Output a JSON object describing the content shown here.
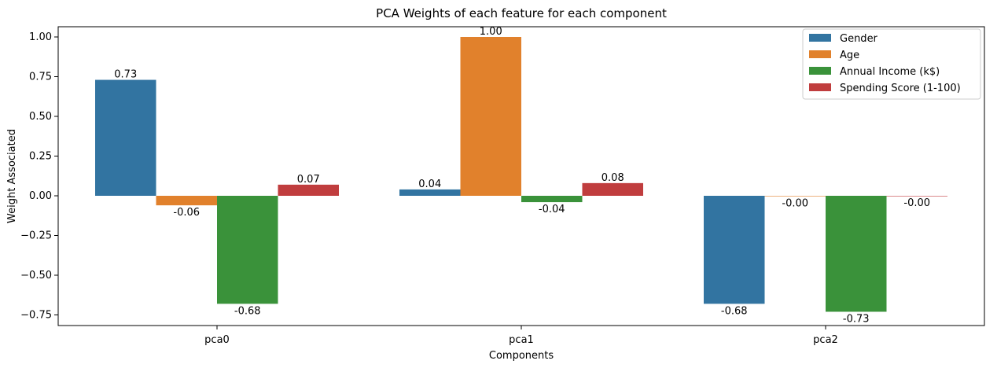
{
  "chart_data": {
    "type": "bar",
    "title": "PCA Weights of each feature for each component",
    "xlabel": "Components",
    "ylabel": "Weight Associated",
    "categories": [
      "pca0",
      "pca1",
      "pca2"
    ],
    "ylim": [
      -0.82,
      1.07
    ],
    "yticks": [
      -0.75,
      -0.5,
      -0.25,
      0.0,
      0.25,
      0.5,
      0.75,
      1.0
    ],
    "ytick_labels": [
      "−0.75",
      "−0.50",
      "−0.25",
      "0.00",
      "0.25",
      "0.50",
      "0.75",
      "1.00"
    ],
    "legend_position": "top-right",
    "grid": false,
    "series": [
      {
        "name": "Gender",
        "color": "#3274a1",
        "values": [
          0.73,
          0.04,
          -0.68
        ],
        "labels": [
          "0.73",
          "0.04",
          "-0.68"
        ]
      },
      {
        "name": "Age",
        "color": "#e1812c",
        "values": [
          -0.06,
          1.0,
          -0.003
        ],
        "labels": [
          "-0.06",
          "1.00",
          "-0.00"
        ]
      },
      {
        "name": "Annual Income (k$)",
        "color": "#3a923a",
        "values": [
          -0.68,
          -0.04,
          -0.73
        ],
        "labels": [
          "-0.68",
          "-0.04",
          "-0.73"
        ]
      },
      {
        "name": "Spending Score (1-100)",
        "color": "#c03d3e",
        "values": [
          0.07,
          0.08,
          -0.001
        ],
        "labels": [
          "0.07",
          "0.08",
          "-0.00"
        ]
      }
    ]
  }
}
